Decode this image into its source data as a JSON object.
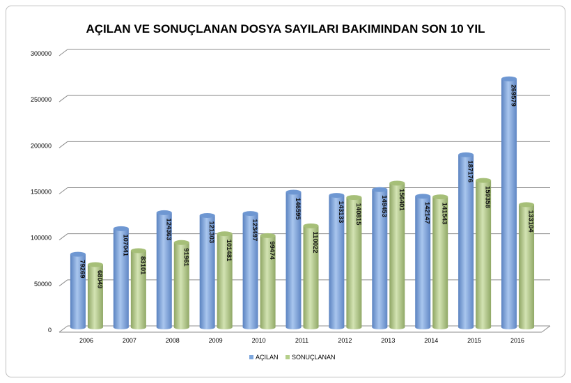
{
  "chart_data": {
    "type": "bar",
    "title": "AÇILAN VE SONUÇLANAN DOSYA SAYILARI BAKIMINDAN SON 10 YIL",
    "categories": [
      "2006",
      "2007",
      "2008",
      "2009",
      "2010",
      "2011",
      "2012",
      "2013",
      "2014",
      "2015",
      "2016"
    ],
    "series": [
      {
        "name": "AÇILAN",
        "color": "#7da7dd",
        "values": [
          79269,
          107041,
          124363,
          121303,
          123497,
          146595,
          143133,
          149453,
          142147,
          187176,
          269579
        ]
      },
      {
        "name": "SONUÇLANAN",
        "color": "#b5cf8a",
        "values": [
          68049,
          83101,
          91961,
          101481,
          99474,
          110022,
          140815,
          156401,
          141543,
          159358,
          133104
        ]
      }
    ],
    "ylim": [
      0,
      300000
    ],
    "yticks": [
      "0",
      "50000",
      "100000",
      "150000",
      "200000",
      "250000",
      "300000"
    ],
    "xlabel": "",
    "ylabel": "",
    "grid": true,
    "legend": "bottom",
    "style": "3d-cylinder"
  }
}
